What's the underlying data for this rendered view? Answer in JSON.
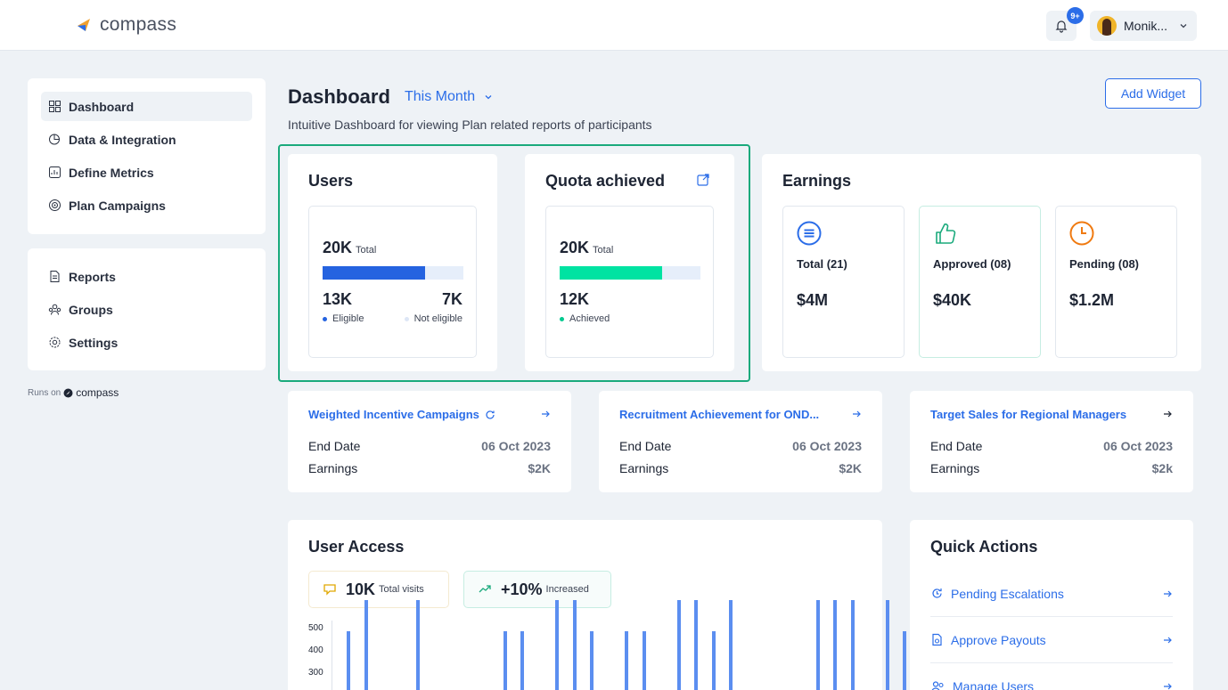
{
  "app": {
    "logo_text": "compass"
  },
  "header": {
    "notification_badge": "9+",
    "user_name": "Monik..."
  },
  "sidebar": {
    "primary": [
      {
        "label": "Dashboard",
        "icon": "dashboard-icon",
        "active": true
      },
      {
        "label": "Data & Integration",
        "icon": "data-integration-icon"
      },
      {
        "label": "Define Metrics",
        "icon": "metrics-icon"
      },
      {
        "label": "Plan Campaigns",
        "icon": "campaigns-icon"
      }
    ],
    "secondary": [
      {
        "label": "Reports",
        "icon": "reports-icon"
      },
      {
        "label": "Groups",
        "icon": "groups-icon"
      },
      {
        "label": "Settings",
        "icon": "settings-icon"
      }
    ],
    "runs_on": "Runs on",
    "runs_on_brand": "compass"
  },
  "page": {
    "title": "Dashboard",
    "period": "This Month",
    "subtitle": "Intuitive Dashboard for viewing Plan related reports of participants",
    "add_widget": "Add Widget"
  },
  "users": {
    "title": "Users",
    "total": "20K",
    "total_label": "Total",
    "fill_fraction": 0.73,
    "eligible": "13K",
    "eligible_label": "Eligible",
    "not_eligible": "7K",
    "not_eligible_label": "Not eligible"
  },
  "quota": {
    "title": "Quota achieved",
    "total": "20K",
    "total_label": "Total",
    "fill_fraction": 0.73,
    "achieved": "12K",
    "achieved_label": "Achieved"
  },
  "earnings": {
    "title": "Earnings",
    "items": [
      {
        "label": "Total (21)",
        "value": "$4M",
        "icon": "list-circle-icon"
      },
      {
        "label": "Approved (08)",
        "value": "$40K",
        "icon": "thumbs-up-icon"
      },
      {
        "label": "Pending (08)",
        "value": "$1.2M",
        "icon": "clock-icon"
      }
    ]
  },
  "campaigns": [
    {
      "title": "Weighted Incentive Campaigns",
      "end_label": "End Date",
      "end_date": "06 Oct 2023",
      "earn_label": "Earnings",
      "earnings": "$2K",
      "has_refresh": true
    },
    {
      "title": "Recruitment Achievement for OND...",
      "end_label": "End Date",
      "end_date": "06 Oct 2023",
      "earn_label": "Earnings",
      "earnings": "$2K"
    },
    {
      "title": "Target Sales for Regional Managers",
      "end_label": "End Date",
      "end_date": "06 Oct 2023",
      "earn_label": "Earnings",
      "earnings": "$2k"
    }
  ],
  "user_access": {
    "title": "User Access",
    "visits": "10K",
    "visits_label": "Total visits",
    "increase": "+10%",
    "increase_label": "Increased",
    "chart_data": {
      "type": "bar",
      "y_ticks": [
        "500",
        "400",
        "300"
      ],
      "ylim": [
        0,
        500
      ],
      "values": [
        300,
        440,
        0,
        0,
        440,
        0,
        0,
        0,
        0,
        300,
        300,
        0,
        440,
        440,
        300,
        0,
        300,
        300,
        0,
        440,
        440,
        300,
        440,
        0,
        0,
        0,
        0,
        440,
        440,
        440,
        0,
        440,
        300,
        440,
        0,
        0,
        300,
        520,
        520,
        520,
        300
      ]
    }
  },
  "quick_actions": {
    "title": "Quick Actions",
    "items": [
      {
        "label": "Pending Escalations",
        "icon": "escalation-icon"
      },
      {
        "label": "Approve Payouts",
        "icon": "payout-icon"
      },
      {
        "label": "Manage Users",
        "icon": "manage-users-icon"
      }
    ]
  },
  "colors": {
    "accent": "#2b6de8",
    "success": "#00e3a2",
    "highlight": "#1aaa7c"
  }
}
